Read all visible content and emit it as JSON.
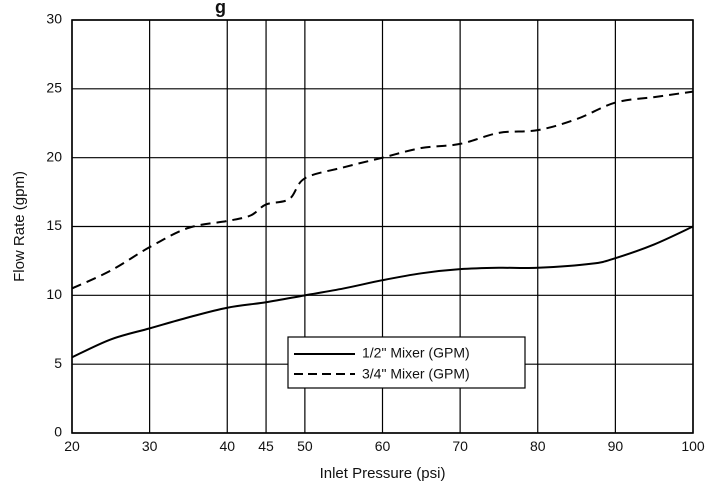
{
  "chart_data": {
    "type": "line",
    "title_fragment": "g",
    "xlabel": "Inlet Pressure (psi)",
    "ylabel": "Flow Rate (gpm)",
    "xlim": [
      20,
      100
    ],
    "ylim": [
      0,
      30
    ],
    "xticks": [
      20,
      30,
      40,
      45,
      50,
      60,
      70,
      80,
      90,
      100
    ],
    "yticks": [
      0,
      5,
      10,
      15,
      20,
      25,
      30
    ],
    "grid": true,
    "legend_position": "center-bottom",
    "series": [
      {
        "name": "1/2\" Mixer (GPM)",
        "style": "solid",
        "color": "#000000",
        "points": [
          [
            20,
            5.5
          ],
          [
            25,
            6.8
          ],
          [
            30,
            7.6
          ],
          [
            35,
            8.4
          ],
          [
            40,
            9.1
          ],
          [
            45,
            9.5
          ],
          [
            50,
            10.0
          ],
          [
            55,
            10.5
          ],
          [
            60,
            11.1
          ],
          [
            65,
            11.6
          ],
          [
            70,
            11.9
          ],
          [
            75,
            12.0
          ],
          [
            80,
            12.0
          ],
          [
            87,
            12.3
          ],
          [
            90,
            12.7
          ],
          [
            95,
            13.7
          ],
          [
            100,
            15.0
          ]
        ]
      },
      {
        "name": "3/4\" Mixer (GPM)",
        "style": "dashed",
        "color": "#000000",
        "points": [
          [
            20,
            10.5
          ],
          [
            25,
            11.8
          ],
          [
            30,
            13.5
          ],
          [
            35,
            14.9
          ],
          [
            40,
            15.4
          ],
          [
            43,
            15.8
          ],
          [
            45,
            16.6
          ],
          [
            48,
            17.0
          ],
          [
            50,
            18.5
          ],
          [
            55,
            19.3
          ],
          [
            60,
            20.0
          ],
          [
            65,
            20.7
          ],
          [
            70,
            21.0
          ],
          [
            75,
            21.8
          ],
          [
            80,
            22.0
          ],
          [
            85,
            22.8
          ],
          [
            90,
            24.0
          ],
          [
            95,
            24.4
          ],
          [
            100,
            24.8
          ]
        ]
      }
    ]
  }
}
